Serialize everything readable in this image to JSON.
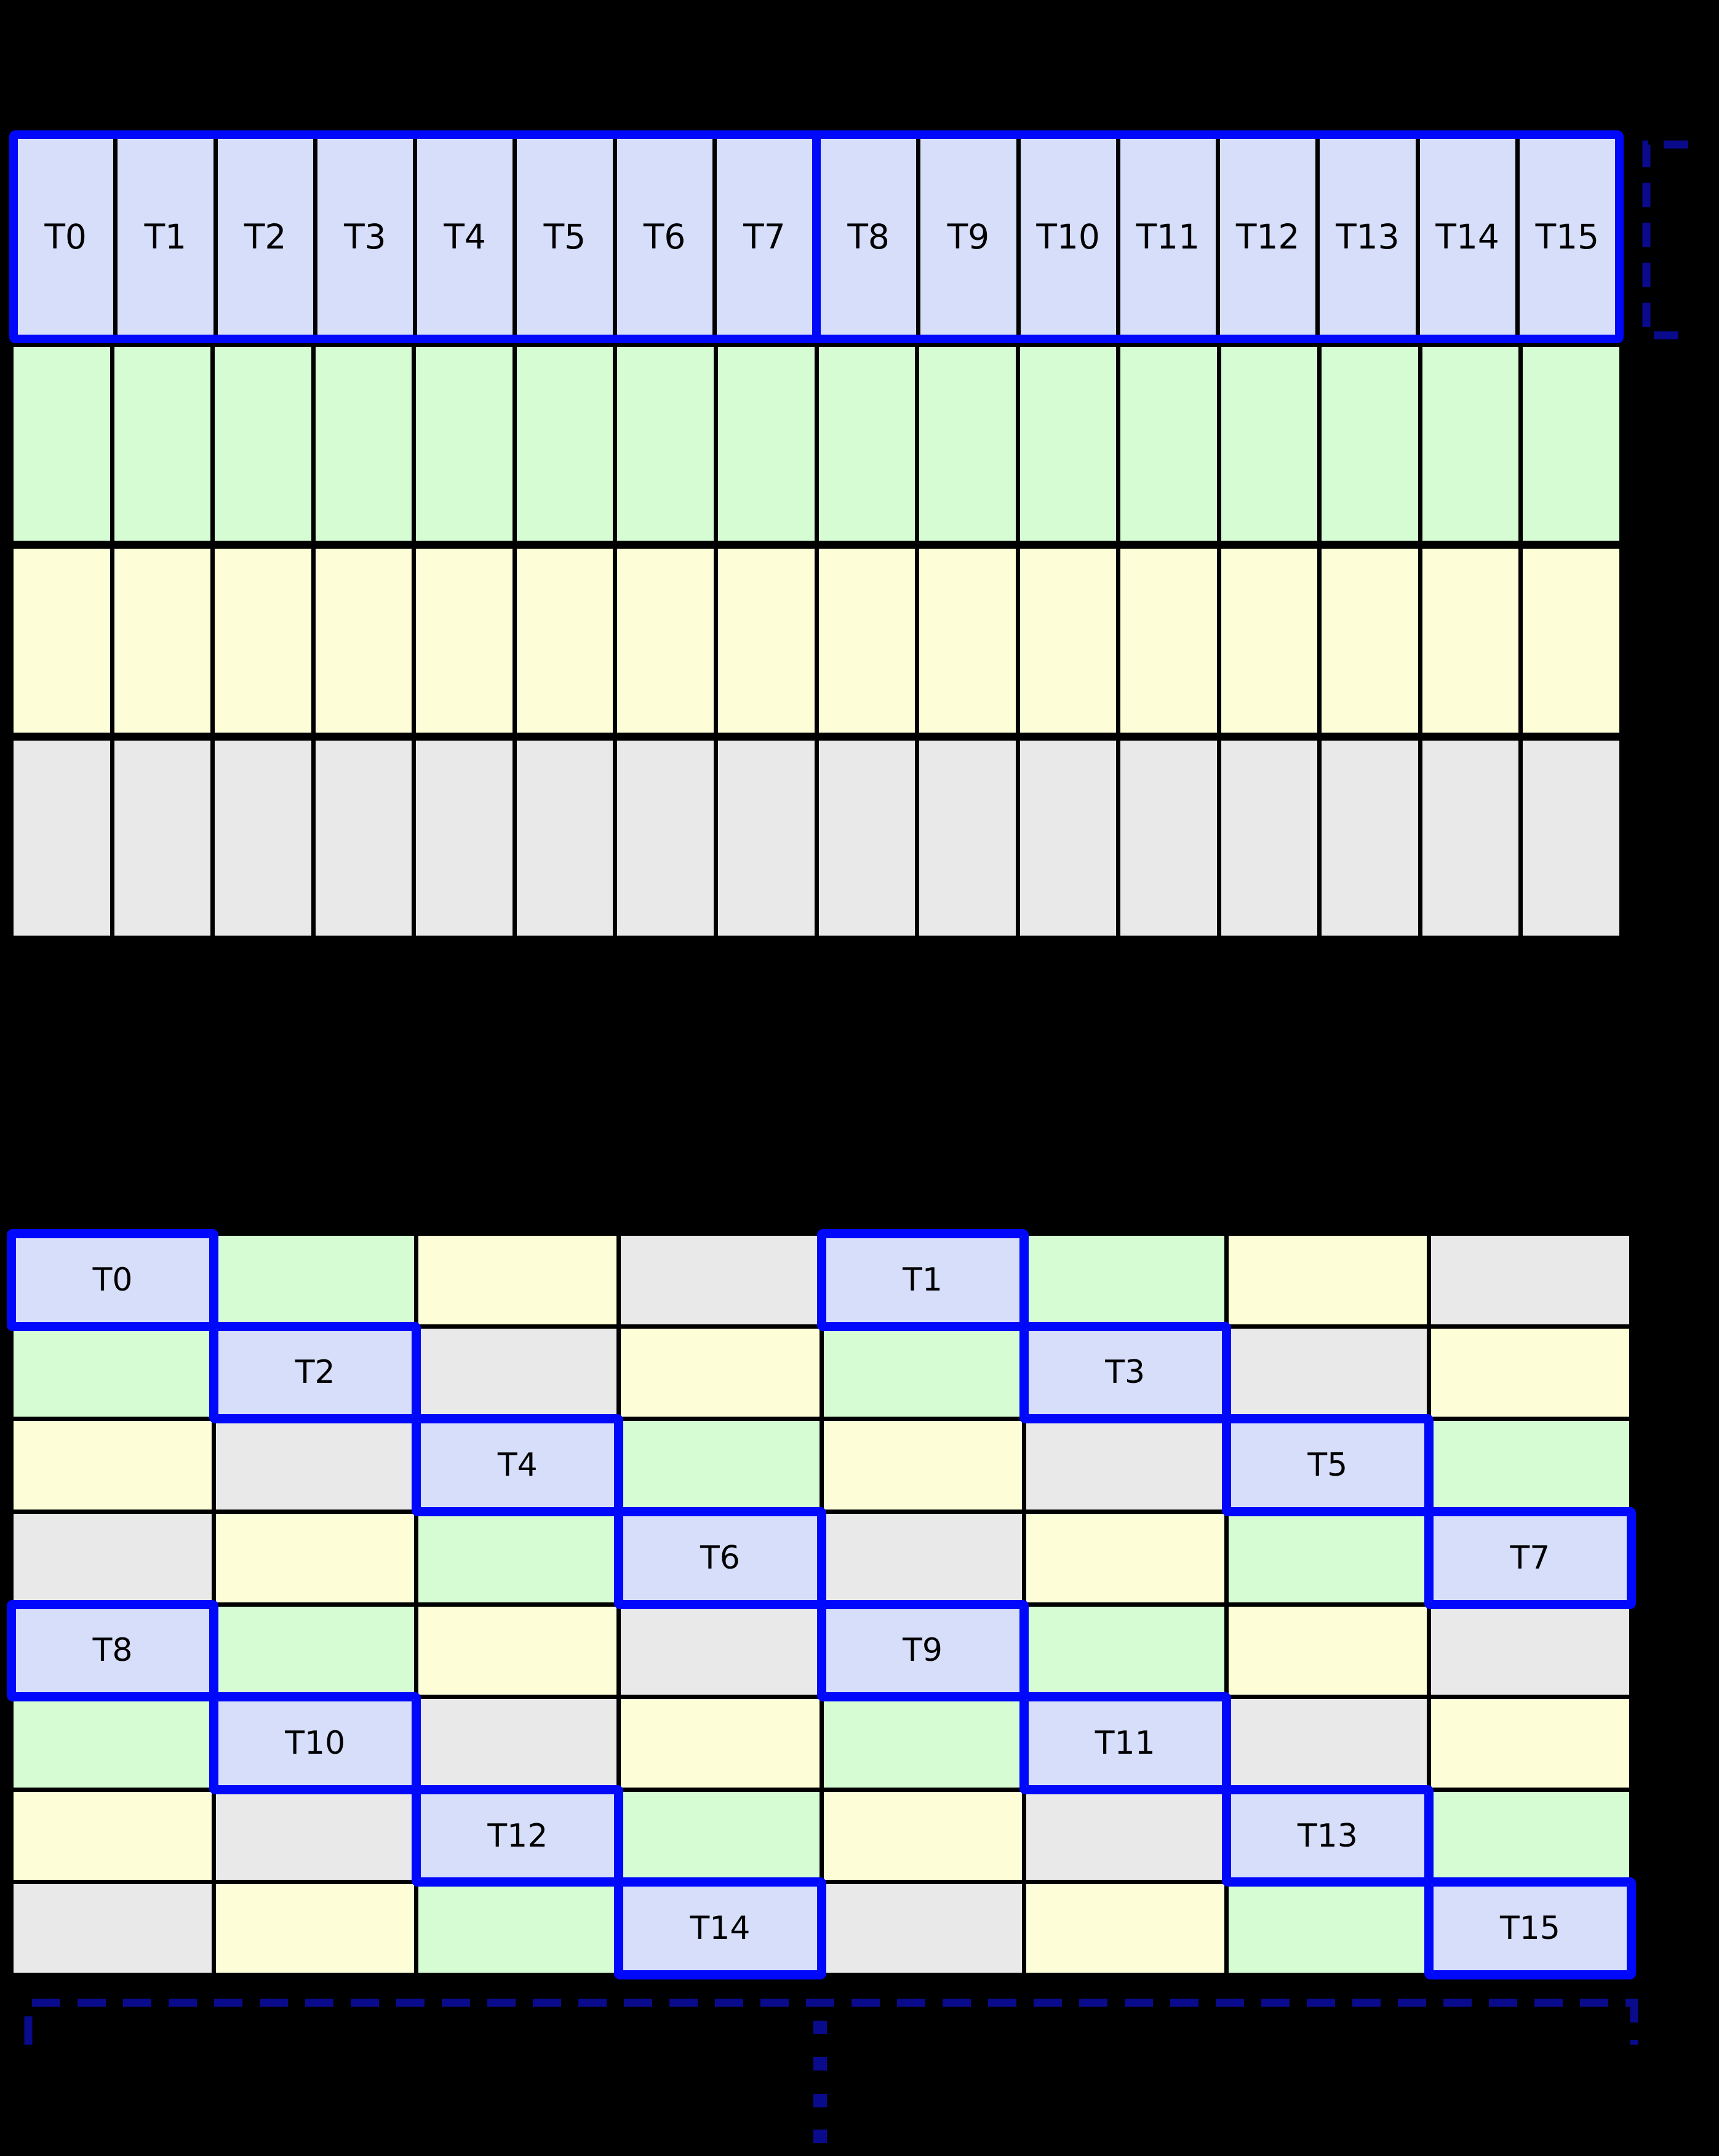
{
  "palette": {
    "lavender": "#d6defa",
    "green": "#d6fcd4",
    "yellow": "#fdfdd7",
    "gray": "#e9e9e9",
    "highlight_blue": "#0008fb",
    "bracket_navy": "#0a0a8c",
    "grid_line": "#000000",
    "background": "#000000"
  },
  "warp_grid": {
    "rows": 4,
    "cols": 16,
    "thread_labels": [
      "T0",
      "T1",
      "T2",
      "T3",
      "T4",
      "T5",
      "T6",
      "T7",
      "T8",
      "T9",
      "T10",
      "T11",
      "T12",
      "T13",
      "T14",
      "T15"
    ],
    "row_fills": [
      "lavender",
      "green",
      "yellow",
      "gray"
    ],
    "half_warp_split_before_index": 8
  },
  "bank_grid": {
    "rows": 8,
    "cols": 8,
    "color_cycle": [
      "lavender",
      "green",
      "yellow",
      "gray"
    ],
    "color_matrix": [
      [
        0,
        1,
        2,
        3,
        0,
        1,
        2,
        3
      ],
      [
        1,
        0,
        3,
        2,
        1,
        0,
        3,
        2
      ],
      [
        2,
        3,
        0,
        1,
        2,
        3,
        0,
        1
      ],
      [
        3,
        2,
        1,
        0,
        3,
        2,
        1,
        0
      ],
      [
        0,
        1,
        2,
        3,
        0,
        1,
        2,
        3
      ],
      [
        1,
        0,
        3,
        2,
        1,
        0,
        3,
        2
      ],
      [
        2,
        3,
        0,
        1,
        2,
        3,
        0,
        1
      ],
      [
        3,
        2,
        1,
        0,
        3,
        2,
        1,
        0
      ]
    ],
    "highlights": [
      {
        "label": "T0",
        "row": 0,
        "col": 0
      },
      {
        "label": "T1",
        "row": 0,
        "col": 4
      },
      {
        "label": "T2",
        "row": 1,
        "col": 1
      },
      {
        "label": "T3",
        "row": 1,
        "col": 5
      },
      {
        "label": "T4",
        "row": 2,
        "col": 2
      },
      {
        "label": "T5",
        "row": 2,
        "col": 6
      },
      {
        "label": "T6",
        "row": 3,
        "col": 3
      },
      {
        "label": "T7",
        "row": 3,
        "col": 7
      },
      {
        "label": "T8",
        "row": 4,
        "col": 0
      },
      {
        "label": "T9",
        "row": 4,
        "col": 4
      },
      {
        "label": "T10",
        "row": 5,
        "col": 1
      },
      {
        "label": "T11",
        "row": 5,
        "col": 5
      },
      {
        "label": "T12",
        "row": 6,
        "col": 2
      },
      {
        "label": "T13",
        "row": 6,
        "col": 6
      },
      {
        "label": "T14",
        "row": 7,
        "col": 3
      },
      {
        "label": "T15",
        "row": 7,
        "col": 7
      }
    ]
  },
  "annotations": {
    "warp_row_bracket": {
      "style": "dashed",
      "color": "#0a0a8c"
    },
    "bank_bottom_bracket": {
      "style": "dashed",
      "color": "#0a0a8c"
    },
    "ellipsis_dot_count": 4
  }
}
